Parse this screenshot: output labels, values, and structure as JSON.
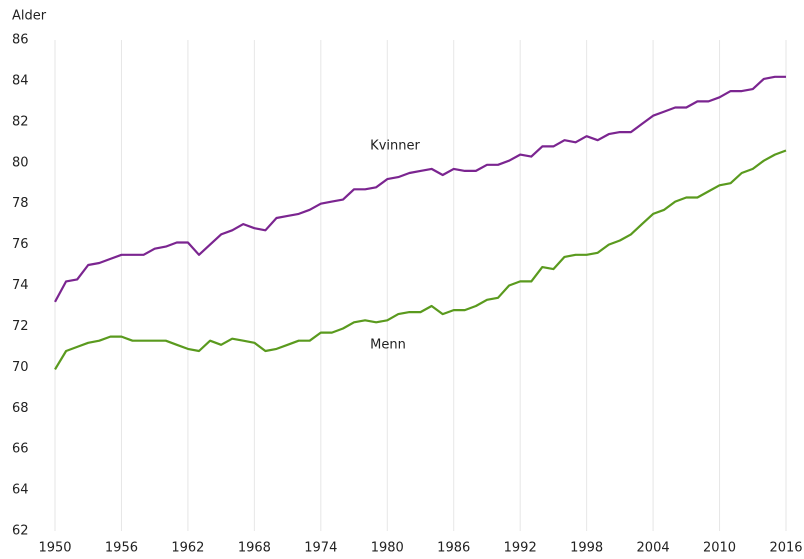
{
  "chart_data": {
    "type": "line",
    "y_label": "Alder",
    "x": [
      1950,
      1951,
      1952,
      1953,
      1954,
      1955,
      1956,
      1957,
      1958,
      1959,
      1960,
      1961,
      1962,
      1963,
      1964,
      1965,
      1966,
      1967,
      1968,
      1969,
      1970,
      1971,
      1972,
      1973,
      1974,
      1975,
      1976,
      1977,
      1978,
      1979,
      1980,
      1981,
      1982,
      1983,
      1984,
      1985,
      1986,
      1987,
      1988,
      1989,
      1990,
      1991,
      1992,
      1993,
      1994,
      1995,
      1996,
      1997,
      1998,
      1999,
      2000,
      2001,
      2002,
      2003,
      2004,
      2005,
      2006,
      2007,
      2008,
      2009,
      2010,
      2011,
      2012,
      2013,
      2014,
      2015,
      2016
    ],
    "series": [
      {
        "name": "Kvinner",
        "color": "#7b2590",
        "values": [
          73.2,
          74.2,
          74.3,
          75.0,
          75.1,
          75.3,
          75.5,
          75.5,
          75.5,
          75.8,
          75.9,
          76.1,
          76.1,
          75.5,
          76.0,
          76.5,
          76.7,
          77.0,
          76.8,
          76.7,
          77.3,
          77.4,
          77.5,
          77.7,
          78.0,
          78.1,
          78.2,
          78.7,
          78.7,
          78.8,
          79.2,
          79.3,
          79.5,
          79.6,
          79.7,
          79.4,
          79.7,
          79.6,
          79.6,
          79.9,
          79.9,
          80.1,
          80.4,
          80.3,
          80.8,
          80.8,
          81.1,
          81.0,
          81.3,
          81.1,
          81.4,
          81.5,
          81.5,
          81.9,
          82.3,
          82.5,
          82.7,
          82.7,
          83.0,
          83.0,
          83.2,
          83.5,
          83.5,
          83.6,
          84.1,
          84.2,
          84.2
        ]
      },
      {
        "name": "Menn",
        "color": "#5a9a1e",
        "values": [
          69.9,
          70.8,
          71.0,
          71.2,
          71.3,
          71.5,
          71.5,
          71.3,
          71.3,
          71.3,
          71.3,
          71.1,
          70.9,
          70.8,
          71.3,
          71.1,
          71.4,
          71.3,
          71.2,
          70.8,
          70.9,
          71.1,
          71.3,
          71.3,
          71.7,
          71.7,
          71.9,
          72.2,
          72.3,
          72.2,
          72.3,
          72.6,
          72.7,
          72.7,
          73.0,
          72.6,
          72.8,
          72.8,
          73.0,
          73.3,
          73.4,
          74.0,
          74.2,
          74.2,
          74.9,
          74.8,
          75.4,
          75.5,
          75.5,
          75.6,
          76.0,
          76.2,
          76.5,
          77.0,
          77.5,
          77.7,
          78.1,
          78.3,
          78.3,
          78.6,
          78.9,
          79.0,
          79.5,
          79.7,
          80.1,
          80.4,
          80.6
        ]
      }
    ],
    "xlim": [
      1950,
      2016
    ],
    "xticks": [
      1950,
      1956,
      1962,
      1968,
      1974,
      1980,
      1986,
      1992,
      1998,
      2004,
      2010,
      2016
    ],
    "ylim": [
      62,
      86
    ],
    "yticks": [
      62,
      64,
      66,
      68,
      70,
      72,
      74,
      76,
      78,
      80,
      82,
      84,
      86
    ],
    "grid": "x"
  }
}
